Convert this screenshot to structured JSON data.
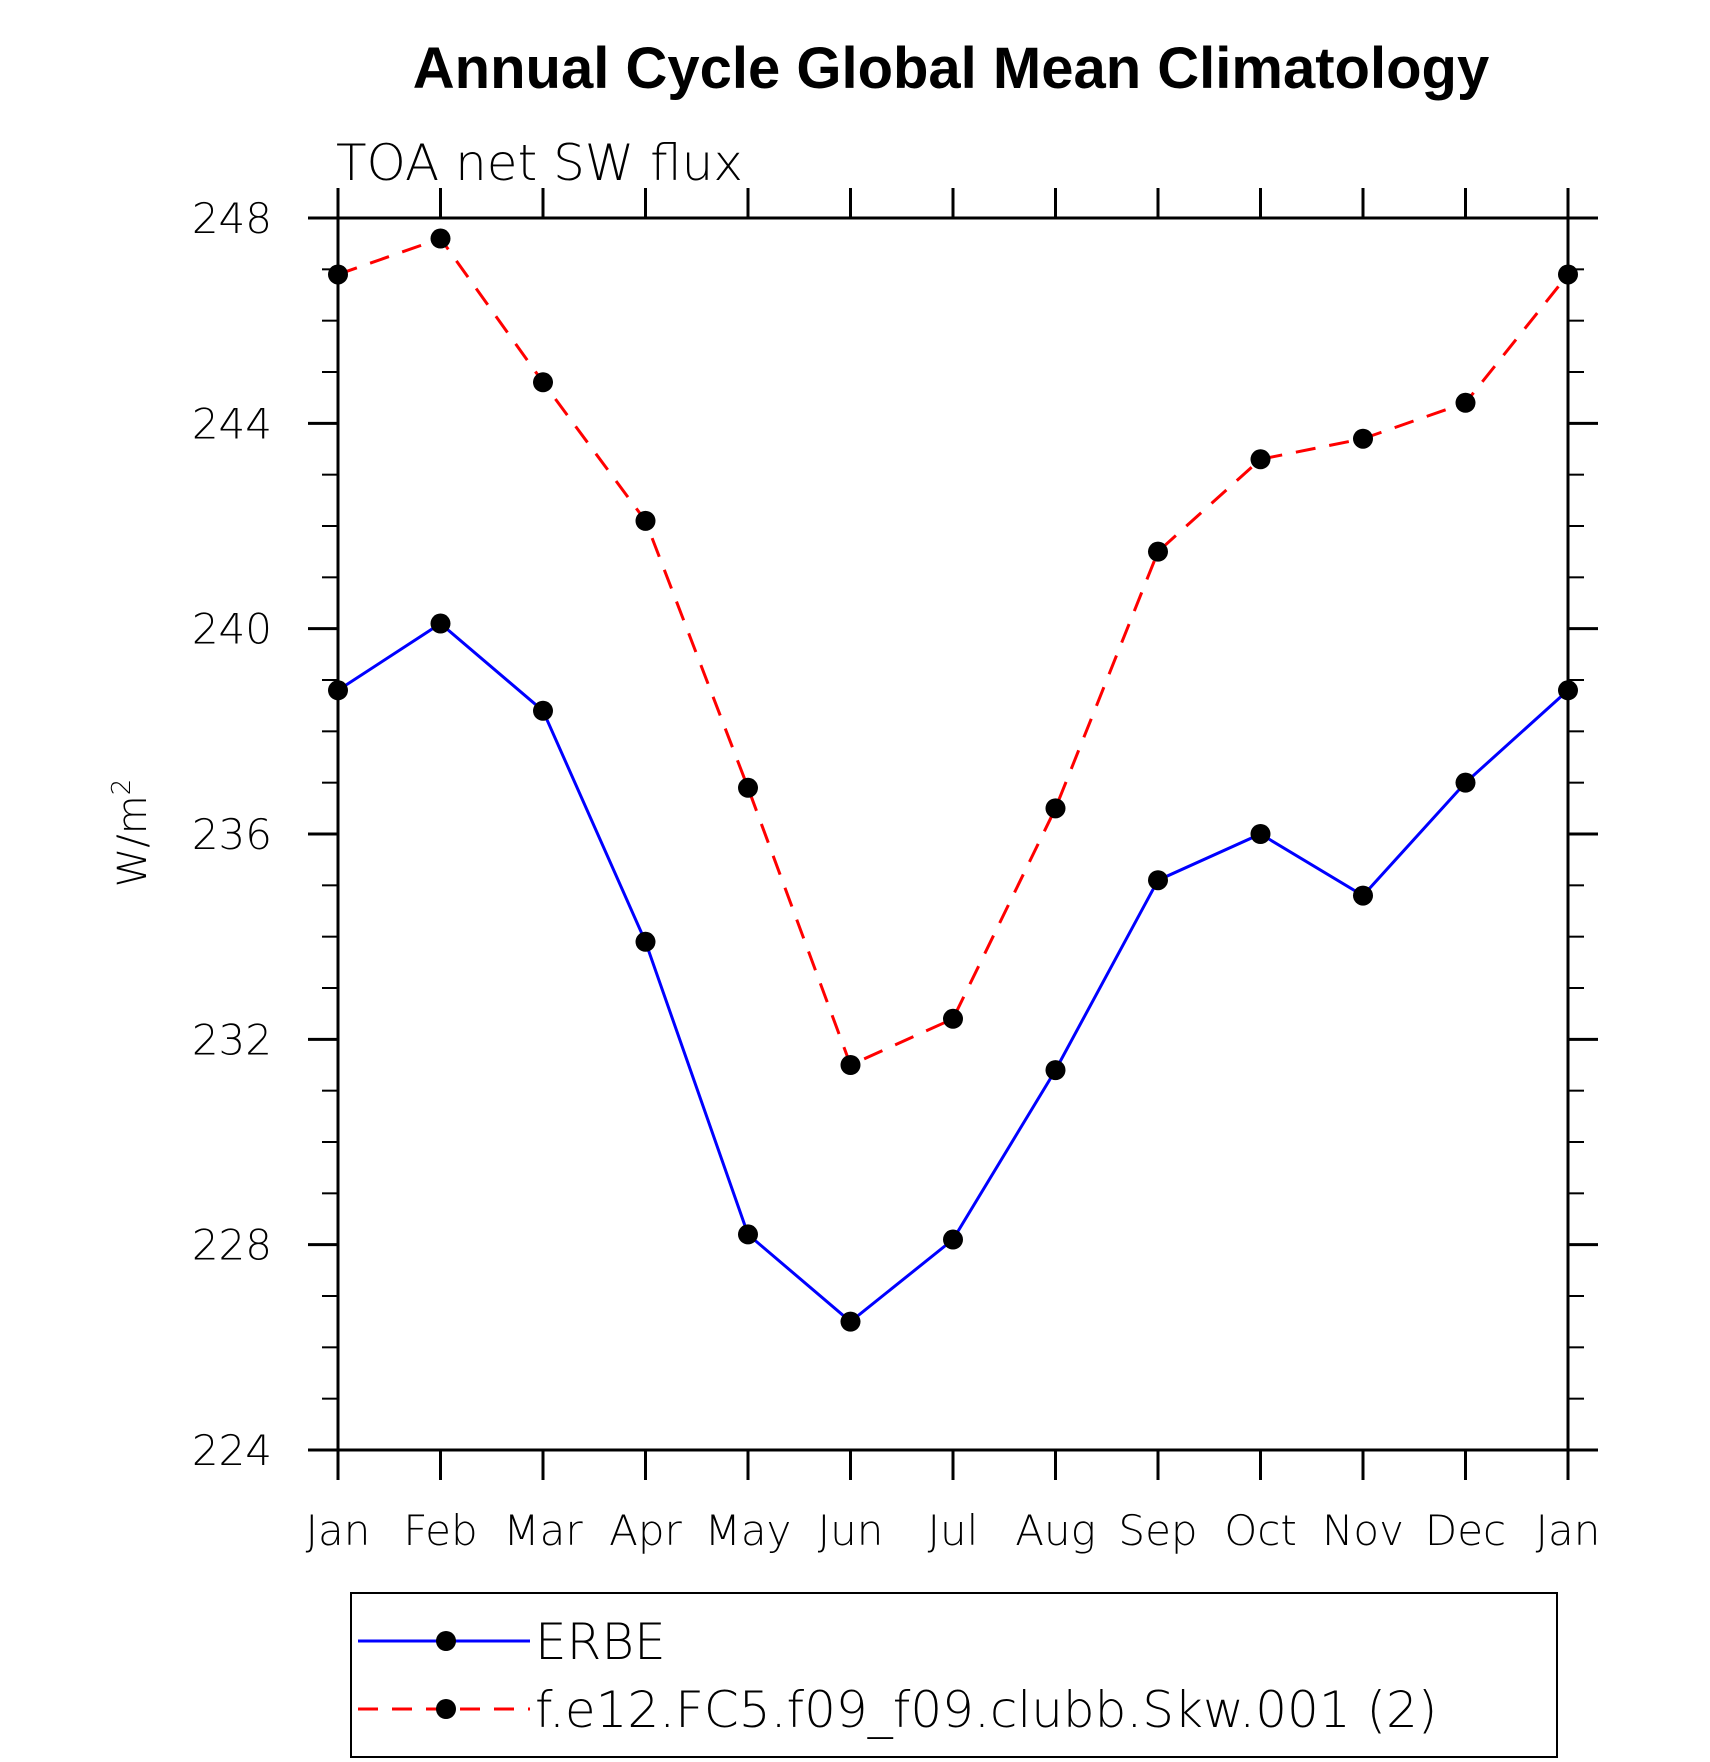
{
  "chart_data": {
    "type": "line",
    "title": "Annual Cycle Global Mean Climatology",
    "subtitle": "TOA net SW flux",
    "ylabel": "W/m",
    "ylabel_superscript": "2",
    "xlabel": "",
    "categories": [
      "Jan",
      "Feb",
      "Mar",
      "Apr",
      "May",
      "Jun",
      "Jul",
      "Aug",
      "Sep",
      "Oct",
      "Nov",
      "Dec",
      "Jan"
    ],
    "ylim": [
      224,
      248
    ],
    "yticks": [
      224,
      228,
      232,
      236,
      240,
      244,
      248
    ],
    "grid": false,
    "legend_position": "bottom",
    "series": [
      {
        "name": "ERBE",
        "color": "#0000ff",
        "line_style": "solid",
        "marker": "filled-circle",
        "values": [
          238.8,
          240.1,
          238.4,
          233.9,
          228.2,
          226.5,
          228.1,
          231.4,
          235.1,
          236.0,
          234.8,
          237.0,
          238.8
        ]
      },
      {
        "name": "f.e12.FC5.f09_f09.clubb.Skw.001 (2)",
        "color": "#ff0000",
        "line_style": "dashed",
        "marker": "filled-circle",
        "values": [
          246.9,
          247.6,
          244.8,
          242.1,
          236.9,
          231.5,
          232.4,
          236.5,
          241.5,
          243.3,
          243.7,
          244.4,
          246.9
        ]
      }
    ]
  }
}
